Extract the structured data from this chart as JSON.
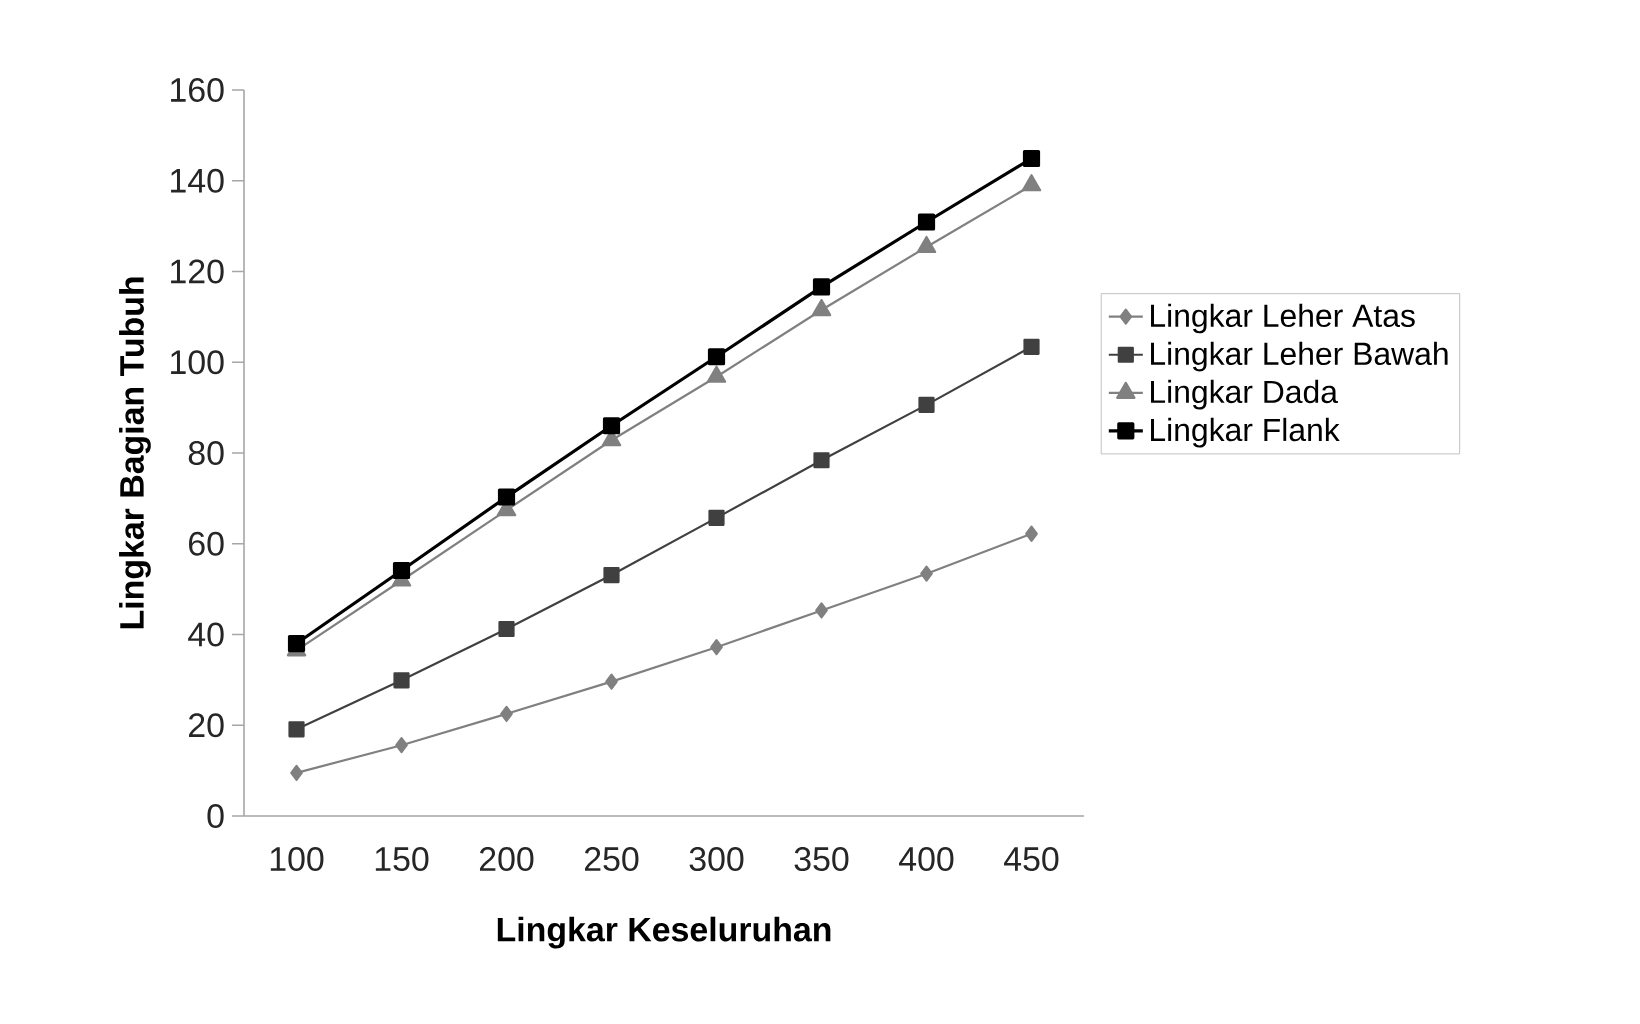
{
  "chart_data": {
    "type": "line",
    "xlabel": "Lingkar Keseluruhan",
    "ylabel": "Lingkar Bagian Tubuh",
    "categories": [
      "100",
      "150",
      "200",
      "250",
      "300",
      "350",
      "400",
      "450"
    ],
    "ylim": [
      0,
      160
    ],
    "yticks": [
      0,
      20,
      40,
      60,
      80,
      100,
      120,
      140,
      160
    ],
    "legend": "right",
    "grid": false,
    "line_style": "solid",
    "series": [
      {
        "name": "Lingkar Leher Atas",
        "color": "#808080",
        "marker": "diamond",
        "values": [
          9.5,
          15.6,
          22.5,
          29.6,
          37.2,
          45.3,
          53.4,
          62.2
        ]
      },
      {
        "name": "Lingkar Leher Bawah",
        "color": "#404040",
        "marker": "square",
        "values": [
          19.1,
          29.9,
          41.2,
          53.1,
          65.7,
          78.4,
          90.6,
          103.4
        ]
      },
      {
        "name": "Lingkar Dada",
        "color": "#808080",
        "marker": "triangle",
        "values": [
          36.5,
          51.9,
          67.4,
          82.8,
          96.8,
          111.5,
          125.4,
          139
        ]
      },
      {
        "name": "Lingkar Flank",
        "color": "#000000",
        "marker": "square",
        "values": [
          38,
          54.1,
          70.3,
          86,
          101.2,
          116.6,
          130.9,
          144.9
        ]
      }
    ]
  }
}
